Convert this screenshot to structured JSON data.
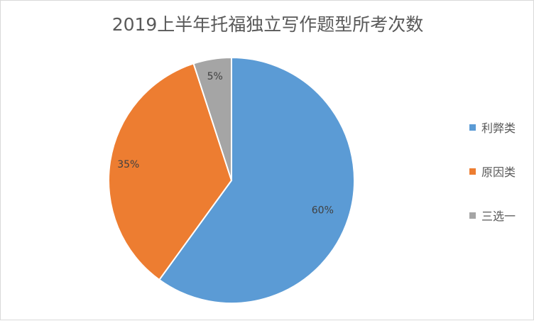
{
  "chart_data": {
    "type": "pie",
    "title": "2019上半年托福独立写作题型所考次数",
    "categories": [
      "利弊类",
      "原因类",
      "三选一"
    ],
    "values": [
      60,
      35,
      5
    ],
    "labels": [
      "60%",
      "35%",
      "5%"
    ],
    "colors": [
      "#5B9BD5",
      "#ED7D31",
      "#A5A5A5"
    ],
    "legend_position": "right"
  }
}
